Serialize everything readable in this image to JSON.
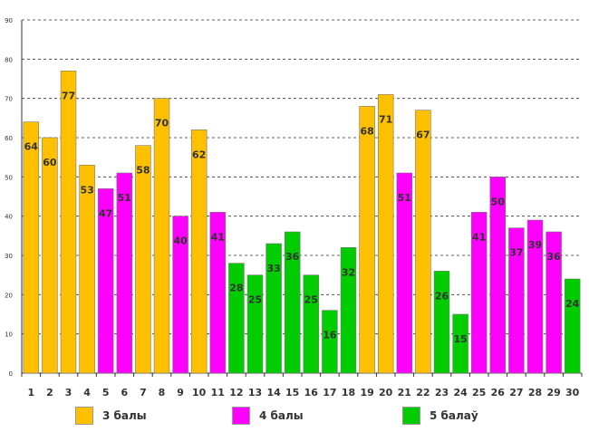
{
  "chart_data": {
    "type": "bar",
    "title": "",
    "xlabel": "",
    "ylabel": "",
    "ylim": [
      0,
      90
    ],
    "yticks": [
      0,
      10,
      20,
      30,
      40,
      50,
      60,
      70,
      80,
      90
    ],
    "grid": true,
    "legend_position": "bottom",
    "categories": [
      "1",
      "2",
      "3",
      "4",
      "5",
      "6",
      "7",
      "8",
      "9",
      "10",
      "11",
      "12",
      "13",
      "14",
      "15",
      "16",
      "17",
      "18",
      "19",
      "20",
      "21",
      "22",
      "23",
      "24",
      "25",
      "26",
      "27",
      "28",
      "29",
      "30"
    ],
    "values": [
      64,
      60,
      77,
      53,
      47,
      51,
      58,
      70,
      40,
      62,
      41,
      28,
      25,
      33,
      36,
      25,
      16,
      32,
      68,
      71,
      51,
      67,
      26,
      15,
      41,
      50,
      37,
      39,
      36,
      24
    ],
    "groups": [
      0,
      0,
      0,
      0,
      1,
      1,
      0,
      0,
      1,
      0,
      1,
      2,
      2,
      2,
      2,
      2,
      2,
      2,
      0,
      0,
      1,
      0,
      2,
      2,
      1,
      1,
      1,
      1,
      1,
      2
    ],
    "series": [
      {
        "name": "3 балы",
        "color": "#FFC000"
      },
      {
        "name": "4 балы",
        "color": "#FF00FF"
      },
      {
        "name": "5 балаў",
        "color": "#00CC00"
      }
    ]
  }
}
